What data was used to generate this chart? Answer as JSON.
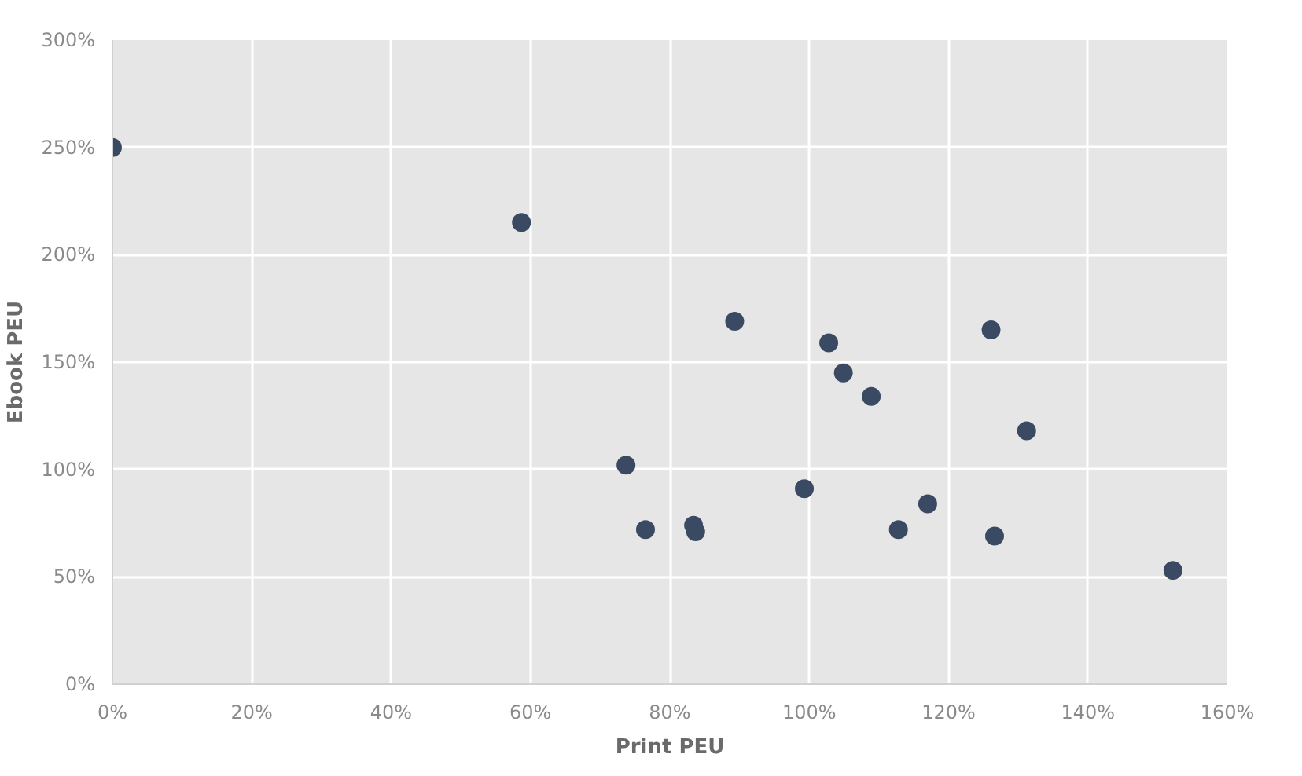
{
  "chart_data": {
    "type": "scatter",
    "xlabel": "Print PEU",
    "ylabel": "Ebook PEU",
    "x": [
      0,
      58.7,
      73.7,
      76.5,
      83.4,
      83.7,
      89.3,
      99.3,
      102.8,
      104.9,
      108.9,
      112.8,
      117,
      126.1,
      126.6,
      131.2,
      152.2
    ],
    "series": [
      {
        "color": "#3b4a63",
        "values": [
          250,
          215,
          102,
          72,
          74,
          71,
          169,
          91,
          159,
          145,
          134,
          72,
          84,
          165,
          69,
          118,
          53
        ]
      }
    ],
    "xlim": [
      0,
      160
    ],
    "ylim": [
      0,
      300
    ],
    "xticks": [
      {
        "value": 0,
        "label": "0%"
      },
      {
        "value": 20,
        "label": "20%"
      },
      {
        "value": 40,
        "label": "40%"
      },
      {
        "value": 60,
        "label": "60%"
      },
      {
        "value": 80,
        "label": "80%"
      },
      {
        "value": 100,
        "label": "100%"
      },
      {
        "value": 120,
        "label": "120%"
      },
      {
        "value": 140,
        "label": "140%"
      },
      {
        "value": 160,
        "label": "160%"
      }
    ],
    "yticks": [
      {
        "value": 0,
        "label": "0%"
      },
      {
        "value": 50,
        "label": "50%"
      },
      {
        "value": 100,
        "label": "100%"
      },
      {
        "value": 150,
        "label": "150%"
      },
      {
        "value": 200,
        "label": "200%"
      },
      {
        "value": 250,
        "label": "250%"
      },
      {
        "value": 300,
        "label": "300%"
      }
    ],
    "grid": true,
    "marker": "circle"
  }
}
